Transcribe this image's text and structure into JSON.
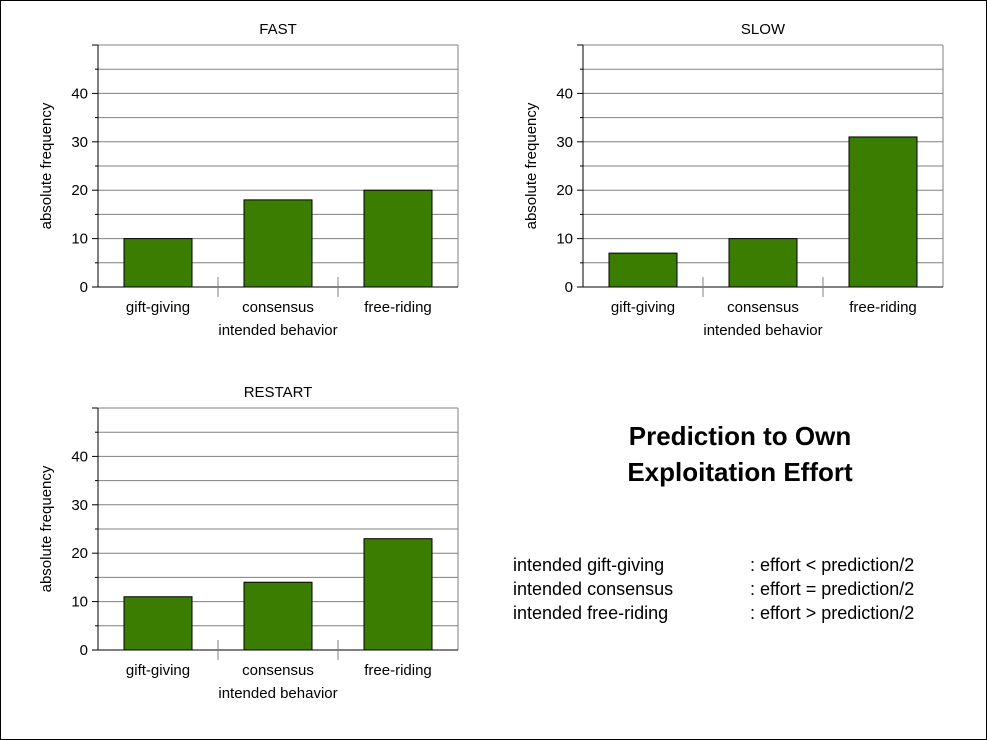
{
  "headline": {
    "line1": "Prediction to Own",
    "line2": "Exploitation Effort"
  },
  "legend": [
    {
      "label": "intended gift-giving",
      "rule": ": effort < prediction/2"
    },
    {
      "label": "intended consensus",
      "rule": ": effort = prediction/2"
    },
    {
      "label": "intended free-riding",
      "rule": ": effort > prediction/2"
    }
  ],
  "colors": {
    "bar": "#3a7d00",
    "grid": "#808080",
    "axis": "#000000"
  },
  "chart_data": [
    {
      "type": "bar",
      "title": "FAST",
      "categories": [
        "gift-giving",
        "consensus",
        "free-riding"
      ],
      "values": [
        10,
        18,
        20
      ],
      "xlabel": "intended behavior",
      "ylabel": "absolute frequency",
      "ylim": [
        0,
        50
      ],
      "yticks": [
        0,
        10,
        20,
        30,
        40
      ],
      "grid": true
    },
    {
      "type": "bar",
      "title": "SLOW",
      "categories": [
        "gift-giving",
        "consensus",
        "free-riding"
      ],
      "values": [
        7,
        10,
        31
      ],
      "xlabel": "intended behavior",
      "ylabel": "absolute frequency",
      "ylim": [
        0,
        50
      ],
      "yticks": [
        0,
        10,
        20,
        30,
        40
      ],
      "grid": true
    },
    {
      "type": "bar",
      "title": "RESTART",
      "categories": [
        "gift-giving",
        "consensus",
        "free-riding"
      ],
      "values": [
        11,
        14,
        23
      ],
      "xlabel": "intended behavior",
      "ylabel": "absolute frequency",
      "ylim": [
        0,
        50
      ],
      "yticks": [
        0,
        10,
        20,
        30,
        40
      ],
      "grid": true
    }
  ]
}
